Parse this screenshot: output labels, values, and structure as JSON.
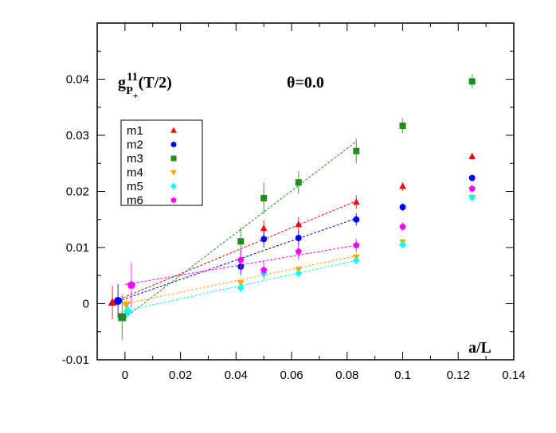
{
  "chart_data": {
    "type": "scatter",
    "title_label": {
      "main": "g",
      "sup": "11",
      "sub": "P",
      "subsub": "+",
      "arg": "(T/2)"
    },
    "annotation": "θ=0.0",
    "xlabel": "a/L",
    "ylabel": "",
    "xlim": [
      -0.01,
      0.14
    ],
    "ylim": [
      -0.01,
      0.05
    ],
    "xticks": [
      "0",
      "0.02",
      "0.04",
      "0.06",
      "0.08",
      "0.1",
      "0.12",
      "0.14"
    ],
    "xtick_values": [
      0,
      0.02,
      0.04,
      0.06,
      0.08,
      0.1,
      0.12,
      0.14
    ],
    "yticks": [
      "-0.01",
      "0",
      "0.01",
      "0.02",
      "0.03",
      "0.04"
    ],
    "ytick_values": [
      -0.01,
      0,
      0.01,
      0.02,
      0.03,
      0.04
    ],
    "legend_position": "upper-left",
    "grid": false,
    "series": [
      {
        "name": "m1",
        "color": "#ff0000",
        "marker": "triangle-up",
        "x": [
          -0.0045,
          0.05,
          0.0625,
          0.0833,
          0.1,
          0.125
        ],
        "y": [
          0.0002,
          0.0134,
          0.0141,
          0.0181,
          0.0209,
          0.0262
        ],
        "err": [
          0.003,
          0.0015,
          0.0013,
          0.0012,
          0.0008,
          0.0006
        ],
        "fit": [
          [
            -0.002,
            0.0008
          ],
          [
            0.0833,
            0.0183
          ]
        ]
      },
      {
        "name": "m2",
        "color": "#0000ff",
        "marker": "circle",
        "x": [
          -0.0025,
          0.0417,
          0.05,
          0.0625,
          0.0833,
          0.1,
          0.125
        ],
        "y": [
          0.0005,
          0.0066,
          0.0115,
          0.0117,
          0.015,
          0.0172,
          0.0224
        ],
        "err": [
          0.003,
          0.0015,
          0.0015,
          0.0013,
          0.0011,
          0.0007,
          0.0005
        ],
        "fit": [
          [
            -0.001,
            0.0007
          ],
          [
            0.0833,
            0.0152
          ]
        ]
      },
      {
        "name": "m3",
        "color": "#228b22",
        "marker": "square",
        "x": [
          -0.001,
          0.0417,
          0.05,
          0.0625,
          0.0833,
          0.1,
          0.125
        ],
        "y": [
          -0.0024,
          0.0111,
          0.0188,
          0.0216,
          0.0272,
          0.0317,
          0.0396
        ],
        "err": [
          0.004,
          0.0025,
          0.0028,
          0.002,
          0.0022,
          0.0013,
          0.0013
        ],
        "fit": [
          [
            0.0,
            -0.0025
          ],
          [
            0.0833,
            0.0289
          ]
        ]
      },
      {
        "name": "m4",
        "color": "#ffa500",
        "marker": "triangle-down",
        "x": [
          0.0005,
          0.0417,
          0.05,
          0.0625,
          0.0833,
          0.1,
          0.125
        ],
        "y": [
          -0.0002,
          0.0037,
          0.0057,
          0.0061,
          0.0083,
          0.011,
          0.0189
        ],
        "err": [
          0.0015,
          0.0008,
          0.0008,
          0.0007,
          0.0006,
          0.0004,
          0.0003
        ],
        "fit": [
          [
            0.0,
            0.0
          ],
          [
            0.0833,
            0.0085
          ]
        ]
      },
      {
        "name": "m5",
        "color": "#00ffff",
        "marker": "diamond",
        "x": [
          0.001,
          0.0417,
          0.05,
          0.0625,
          0.0833,
          0.1,
          0.125
        ],
        "y": [
          -0.0013,
          0.0028,
          0.0054,
          0.0054,
          0.0077,
          0.0105,
          0.0189
        ],
        "err": [
          0.0012,
          0.0006,
          0.0007,
          0.0006,
          0.0005,
          0.0004,
          0.0003
        ],
        "fit": [
          [
            0.0,
            -0.0013
          ],
          [
            0.0833,
            0.0077
          ]
        ]
      },
      {
        "name": "m6",
        "color": "#ff00ff",
        "marker": "pentagon",
        "x": [
          0.0023,
          0.0417,
          0.05,
          0.0625,
          0.0833,
          0.1,
          0.125
        ],
        "y": [
          0.0033,
          0.0078,
          0.006,
          0.0093,
          0.0104,
          0.0137,
          0.0205
        ],
        "err": [
          0.004,
          0.002,
          0.0016,
          0.0014,
          0.0012,
          0.0008,
          0.0006
        ],
        "fit": [
          [
            0.0,
            0.0034
          ],
          [
            0.0833,
            0.0104
          ]
        ]
      }
    ]
  }
}
